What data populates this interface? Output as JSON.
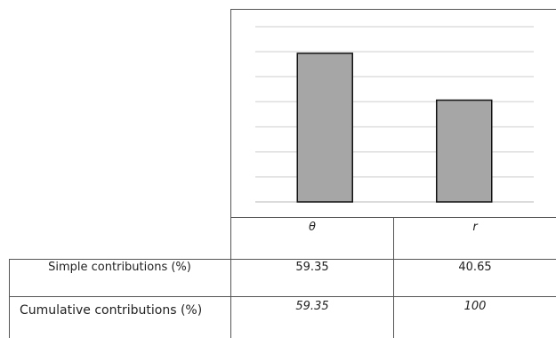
{
  "chart_data": {
    "type": "bar",
    "categories": [
      "θ",
      "r"
    ],
    "values": [
      59.35,
      40.65
    ],
    "ylim": [
      0,
      70
    ],
    "grid": true,
    "bar_color": "#a6a6a6"
  },
  "table": {
    "headers": [
      "θ",
      "r"
    ],
    "rows": [
      {
        "label": "Simple contributions (%)",
        "values": [
          "59.35",
          "40.65"
        ]
      },
      {
        "label": "Cumulative contributions (%)",
        "values": [
          "59.35",
          "100"
        ]
      }
    ]
  }
}
